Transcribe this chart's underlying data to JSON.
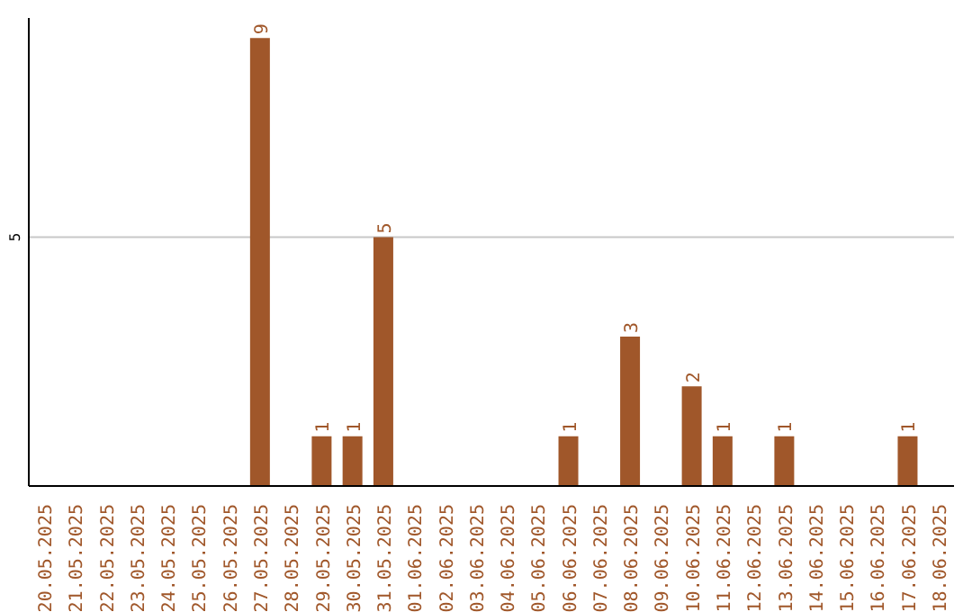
{
  "chart_data": {
    "type": "bar",
    "categories": [
      "20.05.2025",
      "21.05.2025",
      "22.05.2025",
      "23.05.2025",
      "24.05.2025",
      "25.05.2025",
      "26.05.2025",
      "27.05.2025",
      "28.05.2025",
      "29.05.2025",
      "30.05.2025",
      "31.05.2025",
      "01.06.2025",
      "02.06.2025",
      "03.06.2025",
      "04.06.2025",
      "05.06.2025",
      "06.06.2025",
      "07.06.2025",
      "08.06.2025",
      "09.06.2025",
      "10.06.2025",
      "11.06.2025",
      "12.06.2025",
      "13.06.2025",
      "14.06.2025",
      "15.06.2025",
      "16.06.2025",
      "17.06.2025",
      "18.06.2025"
    ],
    "values": [
      0,
      0,
      0,
      0,
      0,
      0,
      0,
      9,
      0,
      1,
      1,
      5,
      0,
      0,
      0,
      0,
      0,
      1,
      0,
      3,
      0,
      2,
      1,
      0,
      1,
      0,
      0,
      0,
      1,
      0
    ],
    "value_labels": [
      null,
      null,
      null,
      null,
      null,
      null,
      null,
      "9",
      null,
      "1",
      "1",
      "5",
      null,
      null,
      null,
      null,
      null,
      "1",
      null,
      "3",
      null,
      "2",
      "1",
      null,
      "1",
      null,
      null,
      null,
      "1",
      null
    ],
    "color": "#a0572a",
    "ylim": [
      0,
      9.4
    ],
    "yticks": [
      5
    ],
    "grid": "y"
  }
}
